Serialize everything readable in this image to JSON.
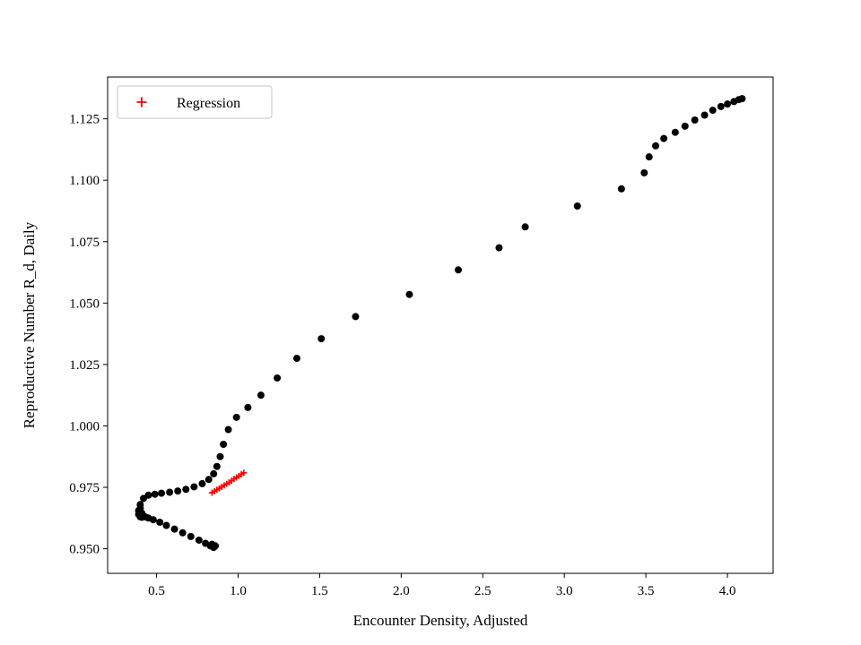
{
  "figure": {
    "background": "#ffffff",
    "frame_color": "#000000"
  },
  "chart_data": {
    "type": "scatter",
    "title": "",
    "xlabel": "Encounter Density, Adjusted",
    "ylabel": "Reproductive Number R_d, Daily",
    "xlim": [
      0.2,
      4.28
    ],
    "ylim": [
      0.94,
      1.142
    ],
    "grid": false,
    "legend_position": "upper left",
    "x_ticks": [
      {
        "v": 0.5,
        "label": "0.5"
      },
      {
        "v": 1.0,
        "label": "1.0"
      },
      {
        "v": 1.5,
        "label": "1.5"
      },
      {
        "v": 2.0,
        "label": "2.0"
      },
      {
        "v": 2.5,
        "label": "2.5"
      },
      {
        "v": 3.0,
        "label": "3.0"
      },
      {
        "v": 3.5,
        "label": "3.5"
      },
      {
        "v": 4.0,
        "label": "4.0"
      }
    ],
    "y_ticks": [
      {
        "v": 0.95,
        "label": "0.950"
      },
      {
        "v": 0.975,
        "label": "0.975"
      },
      {
        "v": 1.0,
        "label": "1.000"
      },
      {
        "v": 1.025,
        "label": "1.025"
      },
      {
        "v": 1.05,
        "label": "1.050"
      },
      {
        "v": 1.075,
        "label": "1.075"
      },
      {
        "v": 1.1,
        "label": "1.100"
      },
      {
        "v": 1.125,
        "label": "1.125"
      }
    ],
    "series": [
      {
        "name": "data",
        "marker": "circle",
        "color": "#000000",
        "marker_size": 4,
        "points": [
          [
            0.4,
            0.968
          ],
          [
            0.42,
            0.9705
          ],
          [
            0.45,
            0.9718
          ],
          [
            0.49,
            0.9722
          ],
          [
            0.53,
            0.9726
          ],
          [
            0.58,
            0.973
          ],
          [
            0.63,
            0.9735
          ],
          [
            0.68,
            0.9742
          ],
          [
            0.73,
            0.9752
          ],
          [
            0.78,
            0.9765
          ],
          [
            0.82,
            0.9782
          ],
          [
            0.85,
            0.9805
          ],
          [
            0.87,
            0.9835
          ],
          [
            0.89,
            0.9875
          ],
          [
            0.91,
            0.9925
          ],
          [
            0.94,
            0.9985
          ],
          [
            0.99,
            1.0035
          ],
          [
            1.06,
            1.0075
          ],
          [
            1.14,
            1.0125
          ],
          [
            1.24,
            1.0195
          ],
          [
            1.36,
            1.0275
          ],
          [
            1.51,
            1.0355
          ],
          [
            1.72,
            1.0445
          ],
          [
            2.05,
            1.0535
          ],
          [
            2.35,
            1.0635
          ],
          [
            2.6,
            1.0725
          ],
          [
            2.76,
            1.081
          ],
          [
            3.08,
            1.0895
          ],
          [
            3.35,
            1.0965
          ],
          [
            3.49,
            1.103
          ],
          [
            3.52,
            1.1095
          ],
          [
            3.56,
            1.114
          ],
          [
            3.61,
            1.117
          ],
          [
            3.68,
            1.1195
          ],
          [
            3.74,
            1.122
          ],
          [
            3.8,
            1.1245
          ],
          [
            3.86,
            1.1265
          ],
          [
            3.91,
            1.1285
          ],
          [
            3.96,
            1.13
          ],
          [
            4.0,
            1.131
          ],
          [
            4.04,
            1.132
          ],
          [
            4.07,
            1.1328
          ],
          [
            4.09,
            1.1332
          ],
          [
            0.4,
            0.9665
          ],
          [
            0.39,
            0.9655
          ],
          [
            0.39,
            0.964
          ],
          [
            0.41,
            0.9645
          ],
          [
            0.4,
            0.963
          ],
          [
            0.41,
            0.9628
          ],
          [
            0.43,
            0.963
          ],
          [
            0.45,
            0.9625
          ],
          [
            0.48,
            0.9618
          ],
          [
            0.52,
            0.9608
          ],
          [
            0.56,
            0.9595
          ],
          [
            0.61,
            0.958
          ],
          [
            0.66,
            0.9565
          ],
          [
            0.71,
            0.955
          ],
          [
            0.76,
            0.9535
          ],
          [
            0.8,
            0.9522
          ],
          [
            0.83,
            0.9512
          ],
          [
            0.85,
            0.9505
          ],
          [
            0.86,
            0.9512
          ],
          [
            0.84,
            0.9518
          ]
        ]
      },
      {
        "name": "Regression",
        "marker": "plus",
        "color": "#ff0000",
        "marker_size": 3.5,
        "points": [
          [
            0.84,
            0.9728
          ],
          [
            0.855,
            0.9734
          ],
          [
            0.87,
            0.974
          ],
          [
            0.885,
            0.9746
          ],
          [
            0.9,
            0.9752
          ],
          [
            0.915,
            0.9758
          ],
          [
            0.93,
            0.9764
          ],
          [
            0.945,
            0.977
          ],
          [
            0.96,
            0.9777
          ],
          [
            0.975,
            0.9784
          ],
          [
            0.99,
            0.979
          ],
          [
            1.005,
            0.9796
          ],
          [
            1.02,
            0.9803
          ],
          [
            1.035,
            0.9809
          ]
        ]
      }
    ]
  }
}
